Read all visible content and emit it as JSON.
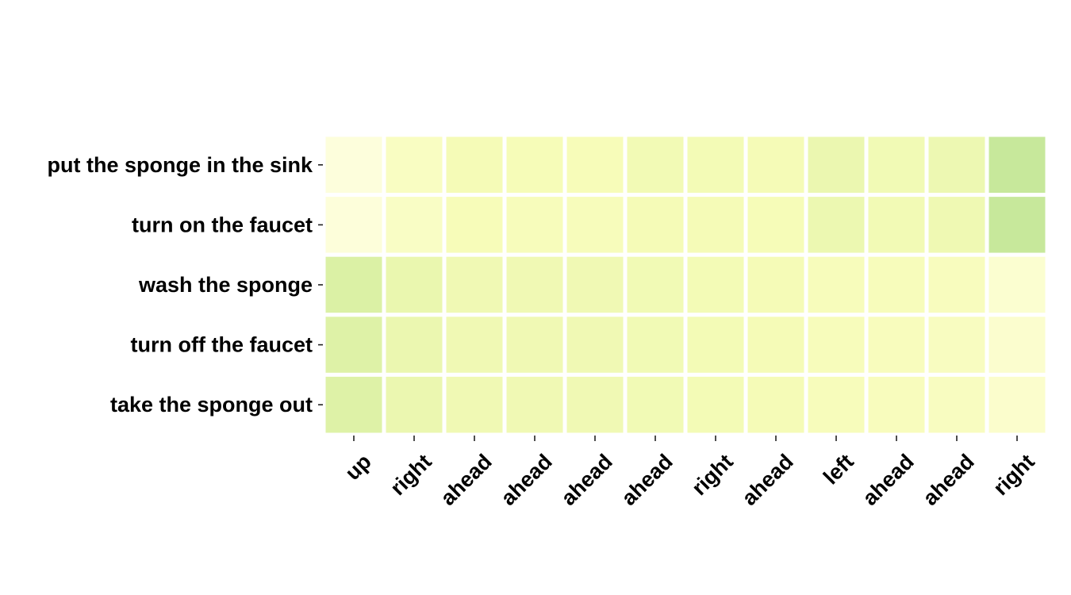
{
  "chart_data": {
    "type": "heatmap",
    "title": "",
    "xlabel": "",
    "ylabel": "",
    "x_categories": [
      "up",
      "right",
      "ahead",
      "ahead",
      "ahead",
      "ahead",
      "right",
      "ahead",
      "left",
      "ahead",
      "ahead",
      "right"
    ],
    "y_categories": [
      "put the sponge in the sink",
      "turn on the faucet",
      "wash the sponge",
      "turn off the faucet",
      "take the sponge out"
    ],
    "values": [
      [
        0.05,
        0.2,
        0.27,
        0.26,
        0.25,
        0.29,
        0.28,
        0.27,
        0.35,
        0.3,
        0.33,
        0.6
      ],
      [
        0.06,
        0.18,
        0.25,
        0.24,
        0.24,
        0.27,
        0.27,
        0.26,
        0.34,
        0.29,
        0.32,
        0.6
      ],
      [
        0.48,
        0.36,
        0.31,
        0.31,
        0.31,
        0.3,
        0.28,
        0.27,
        0.24,
        0.24,
        0.22,
        0.12
      ],
      [
        0.46,
        0.35,
        0.31,
        0.31,
        0.31,
        0.3,
        0.28,
        0.27,
        0.24,
        0.23,
        0.21,
        0.13
      ],
      [
        0.46,
        0.35,
        0.31,
        0.31,
        0.31,
        0.3,
        0.28,
        0.27,
        0.24,
        0.23,
        0.21,
        0.14
      ]
    ],
    "colormap": [
      "#ffffe5",
      "#f7fcb9",
      "#d9f0a3",
      "#addd8e",
      "#78c679"
    ],
    "colorbar": false,
    "grid": false,
    "legend": "none"
  }
}
